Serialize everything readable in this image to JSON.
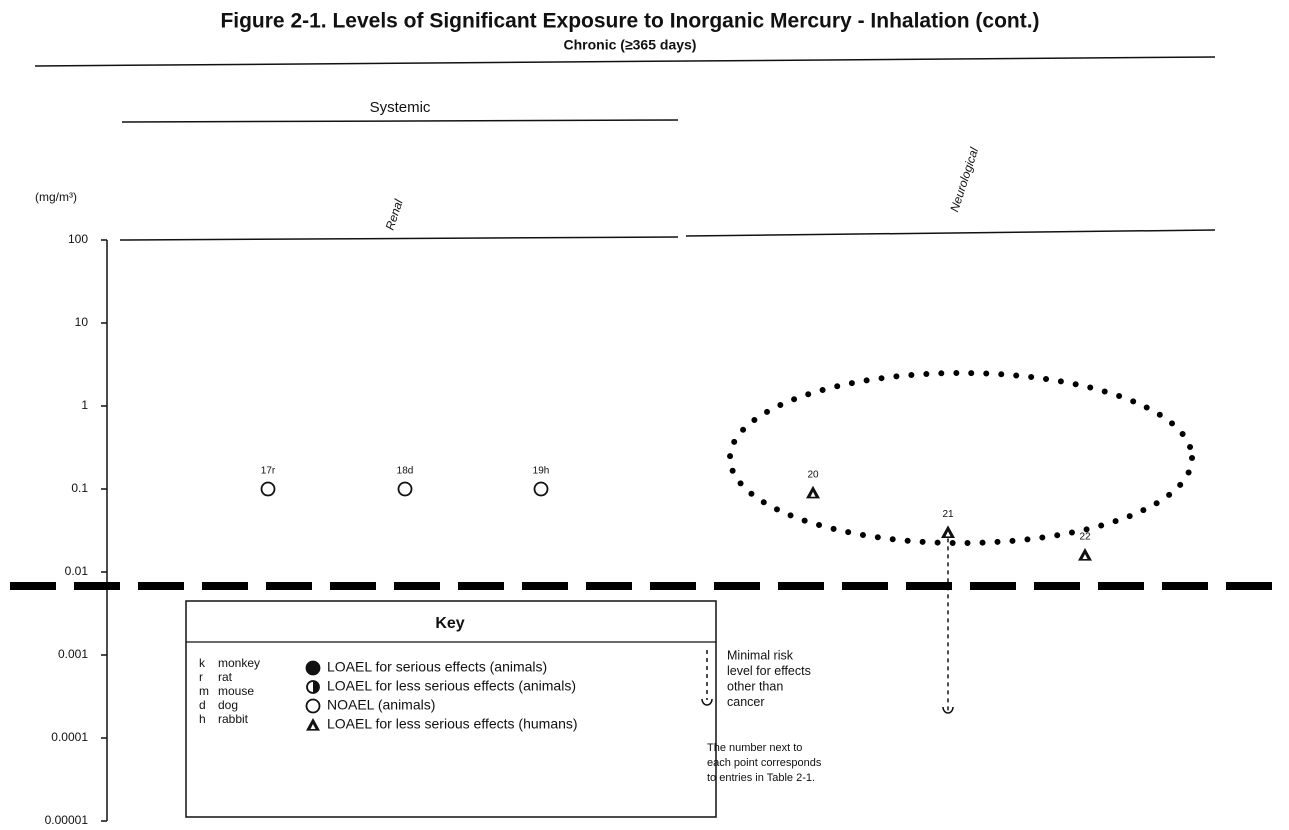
{
  "chart_data": {
    "type": "scatter",
    "title": "Figure 2-1. Levels of Significant Exposure to Inorganic Mercury - Inhalation (cont.)",
    "subtitle": "Chronic (≥365 days)",
    "y_label": "(mg/m³)",
    "log_scale": true,
    "ylim": [
      1e-05,
      100
    ],
    "yticks": [
      100,
      10,
      1,
      0.1,
      0.01,
      0.001,
      0.0001,
      1e-05
    ],
    "group": "Systemic",
    "categories": [
      {
        "name": "Renal",
        "points": [
          {
            "label": "17r",
            "value": 0.1,
            "marker": "circle-open"
          },
          {
            "label": "18d",
            "value": 0.1,
            "marker": "circle-open"
          },
          {
            "label": "19h",
            "value": 0.1,
            "marker": "circle-open"
          }
        ]
      },
      {
        "name": "Neurological",
        "points": [
          {
            "label": "20",
            "value": 0.09,
            "marker": "triangle"
          },
          {
            "label": "21",
            "value": 0.03,
            "marker": "triangle"
          },
          {
            "label": "22",
            "value": 0.016,
            "marker": "triangle"
          }
        ],
        "mrl": 0.0002
      }
    ],
    "key": {
      "title": "Key",
      "species": [
        [
          "k",
          "monkey"
        ],
        [
          "r",
          "rat"
        ],
        [
          "m",
          "mouse"
        ],
        [
          "d",
          "dog"
        ],
        [
          "h",
          "rabbit"
        ]
      ],
      "symbols": [
        {
          "marker": "circle-filled",
          "label": "LOAEL for serious effects (animals)"
        },
        {
          "marker": "circle-half",
          "label": "LOAEL for less serious effects (animals)"
        },
        {
          "marker": "circle-open",
          "label": "NOAEL (animals)"
        },
        {
          "marker": "triangle",
          "label": "LOAEL for less serious effects (humans)"
        }
      ],
      "mrl_text": [
        "Minimal risk",
        "level for effects",
        "other than",
        "cancer"
      ],
      "note": [
        "The number next to",
        "each point corresponds",
        "to entries in Table 2-1."
      ]
    }
  }
}
